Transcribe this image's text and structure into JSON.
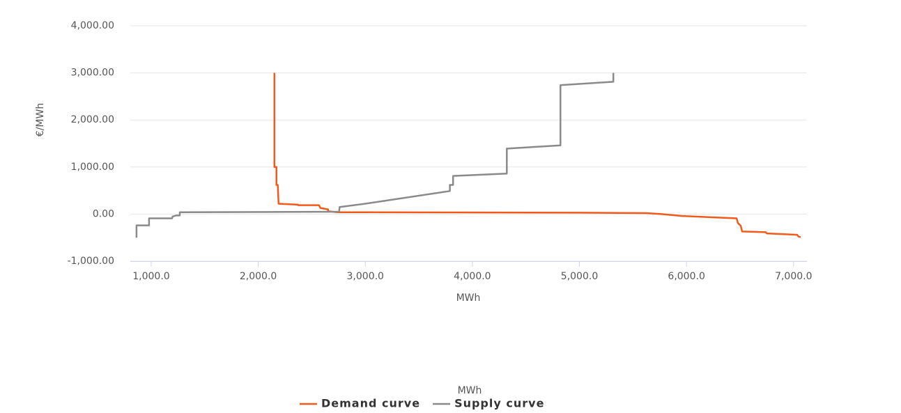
{
  "chart_data": {
    "type": "line",
    "step": true,
    "xlabel": "MWh",
    "ylabel": "€/MWh",
    "legend_title": "MWh",
    "legend": "bottom",
    "grid": true,
    "xlim": [
      805,
      7125
    ],
    "ylim": [
      -1000,
      4000
    ],
    "xticks": [
      {
        "value": 1000,
        "label": "1,000.0"
      },
      {
        "value": 2000,
        "label": "2,000.0"
      },
      {
        "value": 3000,
        "label": "3,000.0"
      },
      {
        "value": 4000,
        "label": "4,000.0"
      },
      {
        "value": 5000,
        "label": "5,000.0"
      },
      {
        "value": 6000,
        "label": "6,000.0"
      },
      {
        "value": 7000,
        "label": "7,000.0"
      }
    ],
    "yticks": [
      {
        "value": -1000,
        "label": "-1,000.00"
      },
      {
        "value": 0,
        "label": "0.00"
      },
      {
        "value": 1000,
        "label": "1,000.00"
      },
      {
        "value": 2000,
        "label": "2,000.00"
      },
      {
        "value": 3000,
        "label": "3,000.00"
      },
      {
        "value": 4000,
        "label": "4,000.00"
      }
    ],
    "series": [
      {
        "name": "Demand curve",
        "color": "#f05a1a",
        "x": [
          2151,
          2151,
          2170,
          2170,
          2182,
          2190,
          2372,
          2372,
          2567,
          2580,
          2652,
          2652,
          2736,
          3000,
          3800,
          5000,
          5623,
          5700,
          5766,
          5961,
          6468,
          6480,
          6507,
          6520,
          6741,
          6750,
          7034,
          7047,
          7066
        ],
        "values": [
          3000,
          1000,
          1000,
          620,
          620,
          220,
          200,
          190,
          190,
          130,
          100,
          60,
          40,
          40,
          35,
          30,
          20,
          10,
          0,
          -40,
          -90,
          -190,
          -250,
          -370,
          -385,
          -410,
          -440,
          -480,
          -490
        ]
      },
      {
        "name": "Supply curve",
        "color": "#8a8a8a",
        "x": [
          863,
          863,
          980,
          980,
          1195,
          1200,
          1234,
          1267,
          1267,
          2755,
          2760,
          3000,
          3790,
          3790,
          3820,
          3820,
          4322,
          4322,
          4823,
          4823,
          5317,
          5317
        ],
        "values": [
          -500,
          -240,
          -240,
          -90,
          -90,
          -50,
          -30,
          -30,
          40,
          50,
          150,
          220,
          490,
          620,
          620,
          810,
          860,
          1390,
          1460,
          2740,
          2810,
          3000
        ]
      }
    ]
  }
}
